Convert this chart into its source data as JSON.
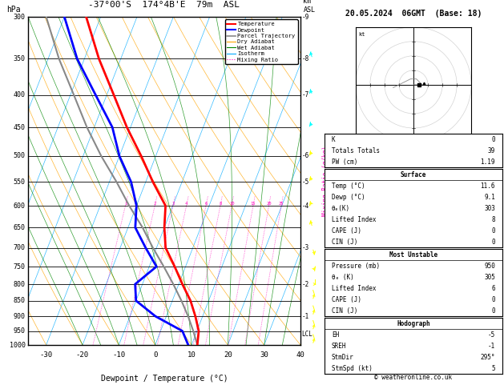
{
  "title": "-37°00'S  174°4B'E  79m  ASL",
  "date_title": "20.05.2024  06GMT  (Base: 18)",
  "xlabel": "Dewpoint / Temperature (°C)",
  "ylabel_left": "hPa",
  "pressure_levels": [
    300,
    350,
    400,
    450,
    500,
    550,
    600,
    650,
    700,
    750,
    800,
    850,
    900,
    950,
    1000
  ],
  "temp_data": {
    "pressure": [
      1000,
      950,
      900,
      850,
      800,
      750,
      700,
      650,
      600,
      550,
      500,
      450,
      400,
      350,
      300
    ],
    "temperature": [
      11.6,
      10.5,
      8.0,
      5.0,
      1.0,
      -3.0,
      -7.5,
      -10.0,
      -12.0,
      -18.0,
      -24.0,
      -31.0,
      -38.0,
      -46.0,
      -54.0
    ]
  },
  "dewp_data": {
    "pressure": [
      1000,
      950,
      900,
      850,
      800,
      750,
      700,
      650,
      600,
      550,
      500,
      450,
      400,
      350,
      300
    ],
    "temperature": [
      9.1,
      6.0,
      -3.0,
      -10.0,
      -12.0,
      -8.0,
      -13.0,
      -18.0,
      -20.0,
      -24.0,
      -30.0,
      -35.0,
      -43.0,
      -52.0,
      -60.0
    ]
  },
  "parcel_data": {
    "pressure": [
      1000,
      950,
      900,
      850,
      800,
      750,
      700,
      650,
      600,
      550,
      500,
      450,
      400,
      350,
      300
    ],
    "temperature": [
      11.6,
      9.0,
      6.0,
      2.5,
      -1.5,
      -6.0,
      -11.0,
      -16.0,
      -22.0,
      -28.0,
      -35.0,
      -42.0,
      -49.0,
      -57.0,
      -65.0
    ]
  },
  "xlim": [
    -35,
    40
  ],
  "skew_factor": 35,
  "pmin": 300,
  "pmax": 1000,
  "mixing_ratio_values": [
    1,
    2,
    3,
    4,
    6,
    8,
    10,
    15,
    20,
    25
  ],
  "lcl_pressure": 960,
  "km_labels": {
    "300": "-9",
    "350": "-8",
    "400": "-7",
    "600": "-4",
    "700": "-3",
    "800": "-2",
    "900": "-1"
  },
  "surface_info": {
    "K": 0,
    "Totals_Totals": 39,
    "PW_cm": 1.19,
    "Temp_C": 11.6,
    "Dewp_C": 9.1,
    "theta_e_K": 303,
    "Lifted_Index": 8,
    "CAPE_J": 0,
    "CIN_J": 0
  },
  "unstable_info": {
    "Pressure_mb": 950,
    "theta_e_K": 305,
    "Lifted_Index": 6,
    "CAPE_J": 0,
    "CIN_J": 0
  },
  "hodograph_info": {
    "EH": -5,
    "SREH": -1,
    "StmDir": 295,
    "StmSpd_kt": 5
  },
  "colors": {
    "temperature": "#FF0000",
    "dewpoint": "#0000FF",
    "parcel": "#888888",
    "dry_adiabat": "#FFA500",
    "wet_adiabat": "#008800",
    "isotherm": "#00AAFF",
    "mixing_ratio": "#FF00BB",
    "background": "#FFFFFF",
    "grid": "#000000"
  },
  "wind_barbs": {
    "pressures": [
      300,
      350,
      400,
      450,
      500,
      550,
      600,
      650,
      700,
      750,
      800,
      850,
      900,
      950,
      1000
    ],
    "u": [
      -3,
      -5,
      -8,
      -8,
      -5,
      -3,
      -2,
      -1,
      1,
      2,
      2,
      1,
      1,
      2,
      2
    ],
    "v": [
      3,
      5,
      6,
      5,
      3,
      2,
      1,
      1,
      -1,
      -1,
      0,
      1,
      1,
      2,
      2
    ],
    "colors": [
      "cyan",
      "cyan",
      "cyan",
      "cyan",
      "yellow",
      "yellow",
      "yellow",
      "yellow",
      "yellow",
      "yellow",
      "yellow",
      "yellow",
      "yellow",
      "yellow",
      "yellow"
    ]
  }
}
